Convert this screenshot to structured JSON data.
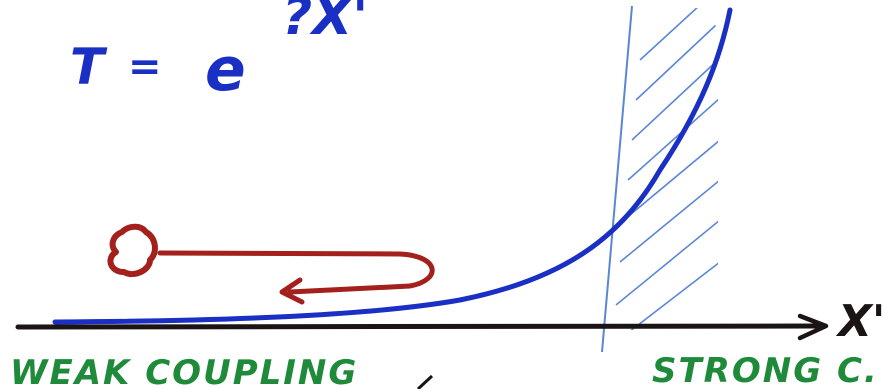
{
  "formula": {
    "lhs": "T",
    "eq": "=",
    "base": "e",
    "exponent": "?X'"
  },
  "axis": {
    "label": "X'"
  },
  "regions": {
    "left_label": "WEAK COUPLING",
    "right_label": "STRONG C."
  },
  "colors": {
    "ink_blue": "#1a2fc4",
    "ink_green": "#1e8a3a",
    "ink_red": "#a3201c",
    "ink_black": "#1a1414",
    "hatch_blue": "#5a86d6"
  }
}
